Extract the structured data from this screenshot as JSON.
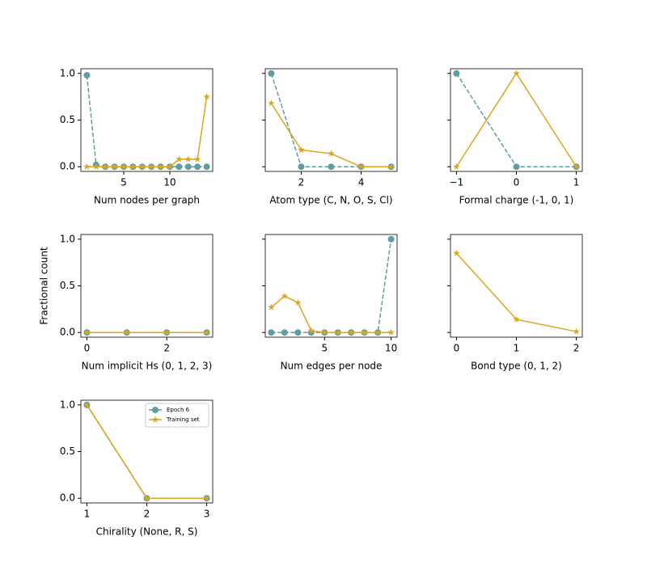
{
  "chart_data": [
    {
      "type": "line",
      "xlabel": "Num nodes per graph",
      "x": [
        1,
        2,
        3,
        4,
        5,
        6,
        7,
        8,
        9,
        10,
        11,
        12,
        13,
        14
      ],
      "series": [
        {
          "name": "Epoch 6",
          "color": "#5f9ea0",
          "linestyle": "dashed",
          "marker": "circle",
          "values": [
            0.98,
            0.02,
            0,
            0,
            0,
            0,
            0,
            0,
            0,
            0,
            0,
            0,
            0,
            0
          ]
        },
        {
          "name": "Training set",
          "color": "#daa520",
          "linestyle": "solid",
          "marker": "star",
          "values": [
            0,
            0,
            0,
            0,
            0,
            0,
            0,
            0,
            0,
            0,
            0.08,
            0.08,
            0.08,
            0.75
          ]
        }
      ],
      "xlim": [
        0.35,
        14.65
      ],
      "xticks": [
        5,
        10
      ],
      "ylim": [
        -0.05,
        1.05
      ],
      "yticks": [
        {
          "value": 0,
          "label": "0.0"
        },
        {
          "value": 0.5,
          "label": "0.5"
        },
        {
          "value": 1,
          "label": "1.0"
        }
      ]
    },
    {
      "type": "line",
      "xlabel": "Atom type (C, N, O, S, Cl)",
      "x": [
        1,
        2,
        3,
        4,
        5
      ],
      "series": [
        {
          "name": "Epoch 6",
          "color": "#5f9ea0",
          "linestyle": "dashed",
          "marker": "circle",
          "values": [
            1,
            0,
            0,
            0,
            0
          ]
        },
        {
          "name": "Training set",
          "color": "#daa520",
          "linestyle": "solid",
          "marker": "star",
          "values": [
            0.68,
            0.18,
            0.14,
            0,
            0
          ]
        }
      ],
      "xlim": [
        0.8,
        5.2
      ],
      "xticks": [
        2,
        4
      ],
      "ylim": [
        -0.05,
        1.05
      ],
      "yticks": [
        0,
        0.5,
        1
      ],
      "show_ytick_labels": false
    },
    {
      "type": "line",
      "xlabel": "Formal charge (-1, 0, 1)",
      "x": [
        -1,
        0,
        1
      ],
      "series": [
        {
          "name": "Epoch 6",
          "color": "#5f9ea0",
          "linestyle": "dashed",
          "marker": "circle",
          "values": [
            1,
            0,
            0
          ]
        },
        {
          "name": "Training set",
          "color": "#daa520",
          "linestyle": "solid",
          "marker": "star",
          "values": [
            0,
            1,
            0
          ]
        }
      ],
      "xlim": [
        -1.1,
        1.1
      ],
      "xticks": [
        {
          "value": -1,
          "label": "−1"
        },
        0,
        1
      ],
      "ylim": [
        -0.05,
        1.05
      ],
      "yticks": [
        0,
        0.5,
        1
      ],
      "show_ytick_labels": false
    },
    {
      "type": "line",
      "xlabel": "Num implicit Hs (0, 1, 2, 3)",
      "ylabel": "Fractional count",
      "x": [
        0,
        1,
        2,
        3
      ],
      "series": [
        {
          "name": "Epoch 6",
          "color": "#5f9ea0",
          "linestyle": "dashed",
          "marker": "circle",
          "values": [
            0,
            0,
            0,
            0
          ]
        },
        {
          "name": "Training set",
          "color": "#daa520",
          "linestyle": "solid",
          "marker": "star",
          "values": [
            0,
            0,
            0,
            0
          ]
        }
      ],
      "xlim": [
        -0.15,
        3.15
      ],
      "xticks": [
        0,
        2
      ],
      "ylim": [
        -0.05,
        1.05
      ],
      "yticks": [
        {
          "value": 0,
          "label": "0.0"
        },
        {
          "value": 0.5,
          "label": "0.5"
        },
        {
          "value": 1,
          "label": "1.0"
        }
      ]
    },
    {
      "type": "line",
      "xlabel": "Num edges per node",
      "x": [
        1,
        2,
        3,
        4,
        5,
        6,
        7,
        8,
        9,
        10
      ],
      "series": [
        {
          "name": "Epoch 6",
          "color": "#5f9ea0",
          "linestyle": "dashed",
          "marker": "circle",
          "values": [
            0,
            0,
            0,
            0,
            0,
            0,
            0,
            0,
            0,
            1
          ]
        },
        {
          "name": "Training set",
          "color": "#daa520",
          "linestyle": "solid",
          "marker": "star",
          "values": [
            0.27,
            0.39,
            0.32,
            0.02,
            0,
            0,
            0,
            0,
            0,
            0
          ]
        }
      ],
      "xlim": [
        0.55,
        10.45
      ],
      "xticks": [
        5,
        10
      ],
      "ylim": [
        -0.05,
        1.05
      ],
      "yticks": [
        0,
        0.5,
        1
      ],
      "show_ytick_labels": false
    },
    {
      "type": "line",
      "xlabel": "Bond type (0, 1, 2)",
      "x": [
        0,
        1,
        2
      ],
      "series": [
        {
          "name": "Training set",
          "color": "#daa520",
          "linestyle": "solid",
          "marker": "star",
          "values": [
            0.85,
            0.14,
            0.01
          ]
        }
      ],
      "xlim": [
        -0.1,
        2.1
      ],
      "xticks": [
        0,
        1,
        2
      ],
      "ylim": [
        -0.05,
        1.05
      ],
      "yticks": [
        0,
        0.5,
        1
      ],
      "show_ytick_labels": false
    },
    {
      "type": "line",
      "xlabel": "Chirality (None, R, S)",
      "x": [
        1,
        2,
        3
      ],
      "series": [
        {
          "name": "Epoch 6",
          "color": "#5f9ea0",
          "linestyle": "dashed",
          "marker": "circle",
          "values": [
            1,
            0,
            0
          ]
        },
        {
          "name": "Training set",
          "color": "#daa520",
          "linestyle": "solid",
          "marker": "star",
          "values": [
            1,
            0,
            0
          ]
        }
      ],
      "xlim": [
        0.9,
        3.1
      ],
      "xticks": [
        1,
        2,
        3
      ],
      "ylim": [
        -0.05,
        1.05
      ],
      "yticks": [
        {
          "value": 0,
          "label": "0.0"
        },
        {
          "value": 0.5,
          "label": "0.5"
        },
        {
          "value": 1,
          "label": "1.0"
        }
      ],
      "legend": "upper right"
    }
  ]
}
